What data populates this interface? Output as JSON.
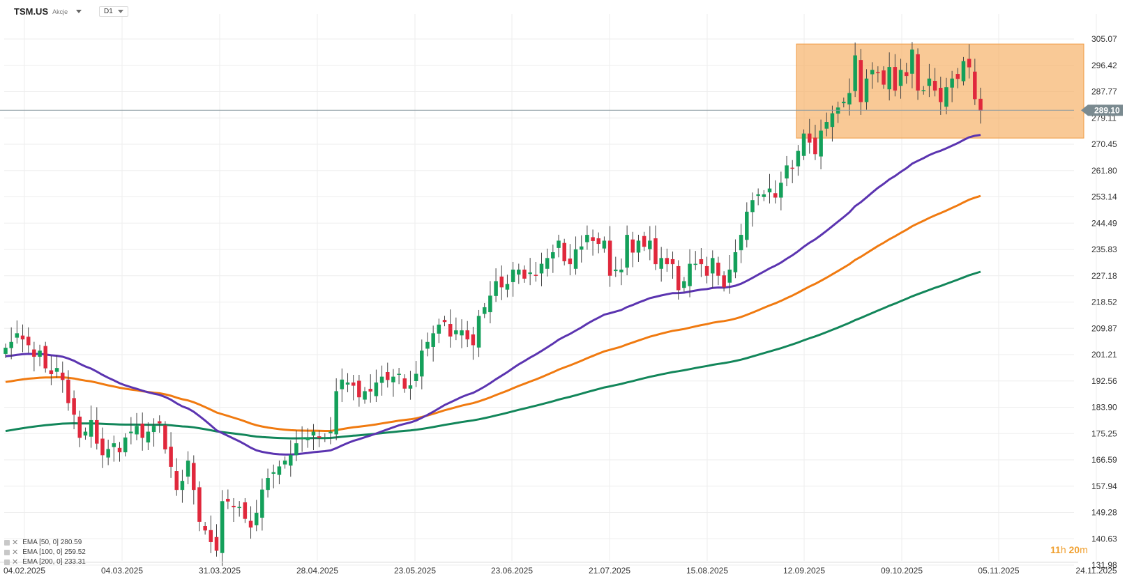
{
  "header": {
    "symbol": "TSM.US",
    "asset_type": "Akcje",
    "timeframe": "D1"
  },
  "timer": {
    "hours": "11",
    "h_unit": "h",
    "minutes": "20",
    "m_unit": "m"
  },
  "legend": [
    {
      "label": "EMA [50, 0] 280.59",
      "color": "#5b34b0"
    },
    {
      "label": "EMA [100, 0] 259.52",
      "color": "#f07a10"
    },
    {
      "label": "EMA [200, 0] 233.31",
      "color": "#12865a"
    }
  ],
  "chart_data": {
    "type": "candlestick",
    "y_ticks": [
      "305.07",
      "296.42",
      "287.77",
      "279.11",
      "270.45",
      "261.80",
      "253.14",
      "244.49",
      "235.83",
      "227.18",
      "218.52",
      "209.87",
      "201.21",
      "192.56",
      "183.90",
      "175.25",
      "166.59",
      "157.94",
      "149.28",
      "140.63",
      "131.98"
    ],
    "x_ticks": [
      "04.02.2025",
      "04.03.2025",
      "31.03.2025",
      "28.04.2025",
      "23.05.2025",
      "23.06.2025",
      "21.07.2025",
      "15.08.2025",
      "12.09.2025",
      "09.10.2025",
      "05.11.2025",
      "24.11.2025"
    ],
    "last_price": "289.10",
    "up_color": "#14a05a",
    "down_color": "#e0283c",
    "highlight_color": "#f5a855",
    "candles_close": [
      207,
      209,
      212,
      210,
      208,
      204,
      206,
      200,
      198,
      200,
      196,
      188,
      184,
      176,
      178,
      182,
      174,
      170,
      172,
      174,
      171,
      176,
      178,
      180,
      176,
      178,
      180,
      181,
      172,
      166,
      158,
      161,
      168,
      158,
      147,
      144,
      140,
      137,
      154,
      154,
      152,
      152,
      148,
      145,
      150,
      158,
      162,
      164,
      166,
      168,
      170,
      174,
      176,
      176,
      178,
      176,
      176,
      178,
      192,
      196,
      195,
      194,
      190,
      192,
      192,
      195,
      197,
      196,
      197,
      198,
      193,
      194,
      198,
      206,
      209,
      212,
      215,
      216,
      211,
      213,
      213,
      210,
      208,
      218,
      221,
      225,
      230,
      228,
      229,
      234,
      234,
      231,
      233,
      232,
      236,
      238,
      240,
      244,
      237,
      236,
      241,
      242,
      246,
      244,
      243,
      244,
      232,
      234,
      234,
      246,
      240,
      244,
      242,
      244,
      236,
      238,
      236,
      236,
      227,
      230,
      236,
      236,
      236,
      232,
      238,
      232,
      228,
      234,
      240,
      246,
      254,
      258,
      260,
      260,
      262,
      259,
      264,
      270,
      269,
      275,
      281,
      278,
      274,
      282,
      285,
      288,
      290,
      292,
      295,
      308,
      292,
      300,
      303,
      302,
      298,
      304,
      296,
      303,
      301,
      310,
      296,
      296,
      300,
      296,
      292,
      297,
      300,
      300,
      306,
      304,
      293,
      289
    ],
    "ema_50_end": 280.59,
    "ema_100_end": 259.52,
    "ema_200_end": 233.31,
    "ylim": [
      131.98,
      313.72
    ],
    "highlight_zone": {
      "y_low": 279.5,
      "y_high": 312.0,
      "x_start": "12.09.2025"
    },
    "grid": true
  }
}
